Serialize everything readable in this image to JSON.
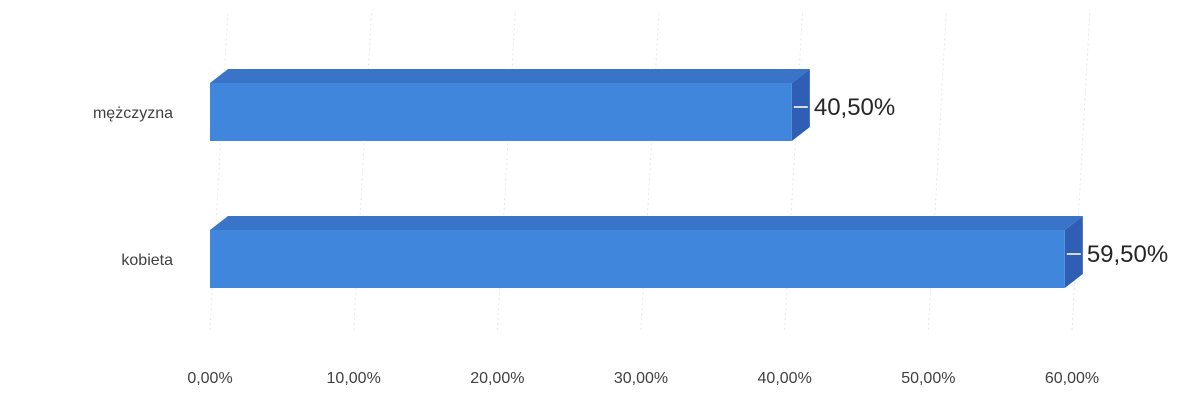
{
  "chart_data": {
    "type": "bar",
    "orientation": "horizontal",
    "style": "3d",
    "categories": [
      "mężczyzna",
      "kobieta"
    ],
    "values": [
      40.5,
      59.5
    ],
    "data_labels": [
      "40,50%",
      "59,50%"
    ],
    "x_ticks": [
      "0,00%",
      "10,00%",
      "20,00%",
      "30,00%",
      "40,00%",
      "50,00%",
      "60,00%"
    ],
    "xlim": [
      0,
      60
    ],
    "grid": true,
    "legend": "none",
    "bar_color": "#3f86dc",
    "bar_top_color": "#3a74c9",
    "bar_side_color": "#2f5fb4"
  }
}
